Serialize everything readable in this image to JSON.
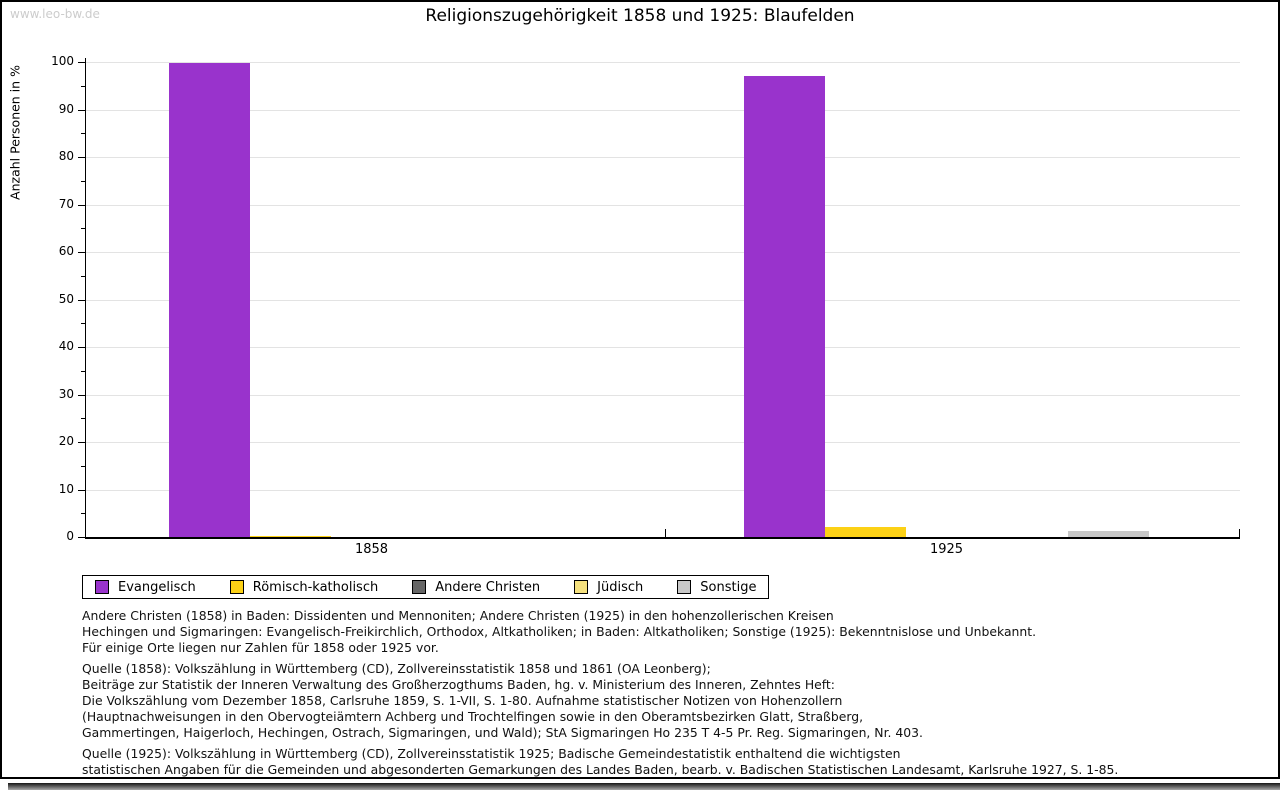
{
  "watermark": "www.leo-bw.de",
  "chart_data": {
    "type": "bar",
    "title": "Religionszugehörigkeit 1858 und 1925: Blaufelden",
    "ylabel": "Anzahl Personen in %",
    "xlabel": "",
    "ylim": [
      0,
      100
    ],
    "yticks": [
      0,
      10,
      20,
      30,
      40,
      50,
      60,
      70,
      80,
      90,
      100
    ],
    "ytick_minor_step": 5,
    "grid": true,
    "legend_position": "bottom-left",
    "categories": [
      "1858",
      "1925"
    ],
    "series": [
      {
        "name": "Evangelisch",
        "color": "#9933CC",
        "values": [
          99.7,
          97.1
        ]
      },
      {
        "name": "Römisch-katholisch",
        "color": "#FCD116",
        "values": [
          0.3,
          2.2
        ]
      },
      {
        "name": "Andere Christen",
        "color": "#666666",
        "values": [
          0,
          0
        ]
      },
      {
        "name": "Jüdisch",
        "color": "#F5E17E",
        "values": [
          0,
          0
        ]
      },
      {
        "name": "Sonstige",
        "color": "#C8C8C8",
        "values": [
          0,
          1.2
        ]
      }
    ]
  },
  "footnotes": [
    {
      "lines": [
        "Andere Christen (1858) in Baden: Dissidenten und Mennoniten; Andere Christen (1925) in den hohenzollerischen Kreisen",
        "Hechingen und Sigmaringen: Evangelisch-Freikirchlich, Orthodox, Altkatholiken; in Baden: Altkatholiken; Sonstige (1925): Bekenntnislose und Unbekannt.",
        "Für einige Orte liegen nur Zahlen für 1858 oder 1925 vor."
      ]
    },
    {
      "lines": [
        "Quelle (1858): Volkszählung in Württemberg (CD), Zollvereinsstatistik 1858 und 1861 (OA Leonberg);",
        "Beiträge zur Statistik der Inneren Verwaltung des Großherzogthums Baden, hg. v. Ministerium des Inneren, Zehntes Heft:",
        "Die Volkszählung vom Dezember 1858, Carlsruhe 1859, S. 1-VII, S. 1-80. Aufnahme statistischer Notizen von Hohenzollern",
        "(Hauptnachweisungen in den Obervogteiämtern Achberg und Trochtelfingen sowie in den Oberamtsbezirken Glatt, Straßberg,",
        "Gammertingen, Haigerloch, Hechingen, Ostrach, Sigmaringen, und Wald); StA Sigmaringen Ho 235 T 4-5 Pr. Reg. Sigmaringen, Nr. 403."
      ]
    },
    {
      "lines": [
        "Quelle (1925): Volkszählung in Württemberg (CD), Zollvereinsstatistik 1925; Badische Gemeindestatistik enthaltend die wichtigsten",
        "statistischen Angaben für die Gemeinden und abgesonderten Gemarkungen des Landes Baden, bearb. v. Badischen Statistischen Landesamt, Karlsruhe 1927, S. 1-85."
      ]
    }
  ]
}
